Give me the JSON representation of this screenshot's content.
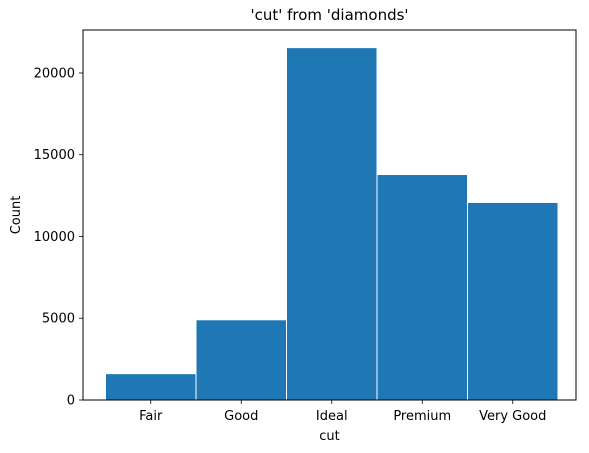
{
  "chart_data": {
    "type": "bar",
    "title": "'cut' from 'diamonds'",
    "xlabel": "cut",
    "ylabel": "Count",
    "categories": [
      "Fair",
      "Good",
      "Ideal",
      "Premium",
      "Very Good"
    ],
    "values": [
      1610,
      4906,
      21551,
      13791,
      12082
    ],
    "ylim": [
      0,
      22629
    ],
    "yticks": [
      "0",
      "5000",
      "10000",
      "15000",
      "20000"
    ],
    "yticks_values": [
      0,
      5000,
      10000,
      15000,
      20000
    ],
    "bar_color": "#1f77b4",
    "bar_edge_color": "#ffffff",
    "grid": false,
    "legend": "none"
  }
}
